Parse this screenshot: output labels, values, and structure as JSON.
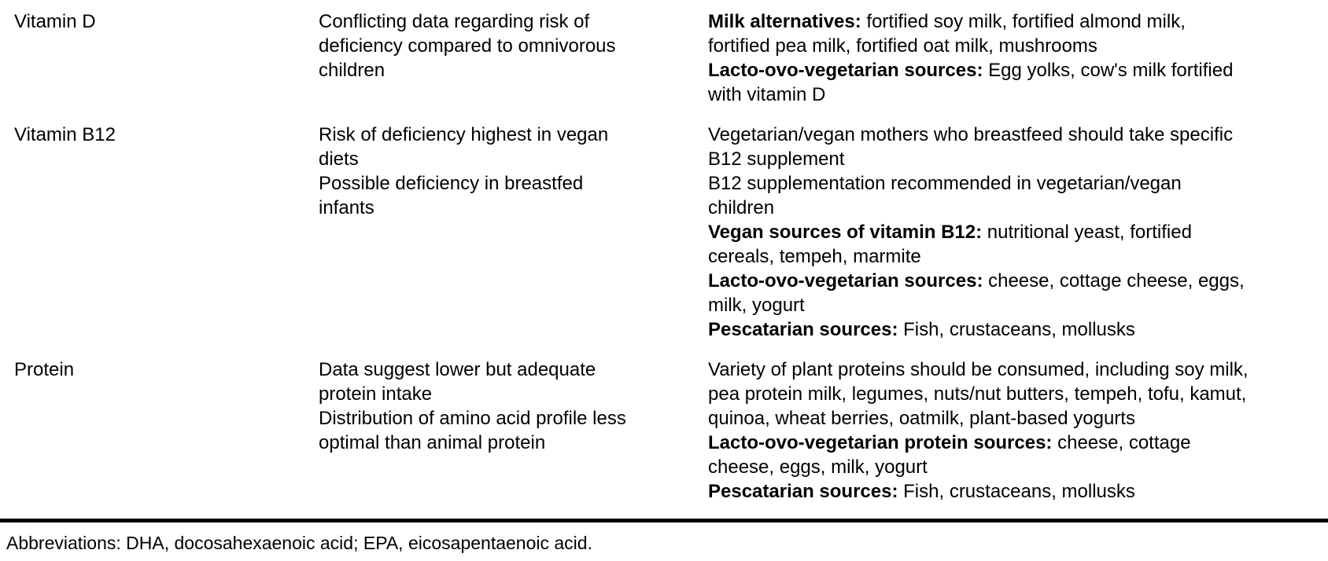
{
  "colors": {
    "text": "#000000",
    "background": "#ffffff",
    "rule": "#000000"
  },
  "table": {
    "rows": [
      {
        "nutrient": "Vitamin D",
        "risks": [
          "Conflicting data regarding risk of deficiency compared to omnivorous children"
        ],
        "sources": [
          {
            "lead": "Milk alternatives:",
            "text": "fortified soy milk, fortified almond milk, fortified pea milk, fortified oat milk, mushrooms"
          },
          {
            "lead": "Lacto-ovo-vegetarian sources:",
            "text": "Egg yolks, cow's milk fortified with vitamin D"
          }
        ]
      },
      {
        "nutrient": "Vitamin B12",
        "risks": [
          "Risk of deficiency highest in vegan diets",
          "Possible deficiency in breastfed infants"
        ],
        "sources": [
          {
            "lead": "",
            "text": "Vegetarian/vegan mothers who breastfeed should take specific B12 supplement"
          },
          {
            "lead": "",
            "text": "B12 supplementation recommended in vegetarian/vegan children"
          },
          {
            "lead": "Vegan sources of vitamin B12:",
            "text": "nutritional yeast, fortified cereals, tempeh, marmite"
          },
          {
            "lead": "Lacto-ovo-vegetarian sources:",
            "text": "cheese, cottage cheese, eggs, milk, yogurt"
          },
          {
            "lead": "Pescatarian sources:",
            "text": "Fish, crustaceans, mollusks"
          }
        ]
      },
      {
        "nutrient": "Protein",
        "risks": [
          "Data suggest lower but adequate protein intake",
          "Distribution of amino acid profile less optimal than animal protein"
        ],
        "sources": [
          {
            "lead": "",
            "text": "Variety of plant proteins should be consumed, including soy milk, pea protein milk, legumes, nuts/nut butters, tempeh, tofu, kamut, quinoa, wheat berries, oatmilk, plant-based yogurts"
          },
          {
            "lead": "Lacto-ovo-vegetarian protein sources:",
            "text": "cheese, cottage cheese, eggs, milk, yogurt"
          },
          {
            "lead": "Pescatarian sources:",
            "text": "Fish, crustaceans, mollusks"
          }
        ]
      }
    ]
  },
  "footnote": "Abbreviations: DHA, docosahexaenoic acid; EPA, eicosapentaenoic acid."
}
